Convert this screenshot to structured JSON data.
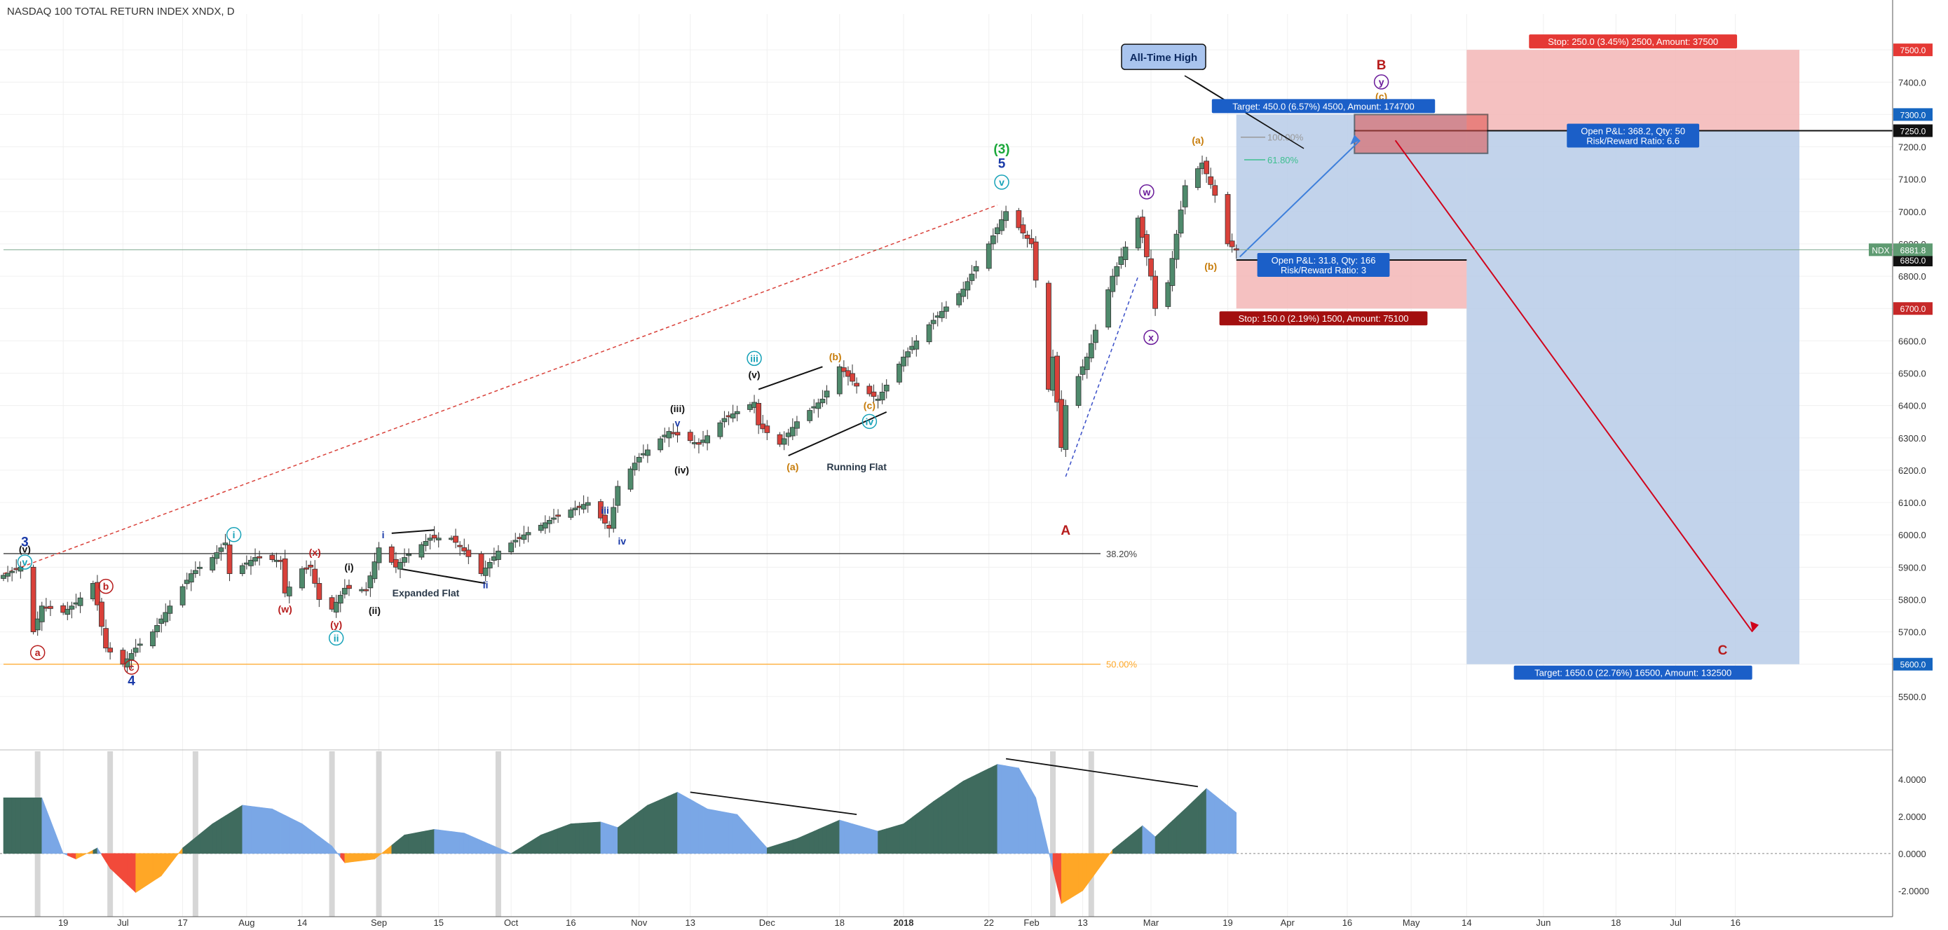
{
  "header": {
    "symbol_title": "NASDAQ 100 TOTAL RETURN INDEX XNDX, D"
  },
  "colors": {
    "up": "#4f8a6c",
    "down": "#d9413a",
    "grid": "#f0f0f0",
    "price_line": "#7faa8f",
    "osc_up_strong": "#3f6b5e",
    "osc_up_weak": "#7aa7e6",
    "osc_down_strong": "#f24a3a",
    "osc_down_weak": "#ffa726",
    "fib_ath": "#999999",
    "fib_618": "#3dbf8f",
    "fib_382": "#111111",
    "fib_50": "#ffa726",
    "target_zone": "#b7cbe8",
    "stop_zone": "#f3b6b6",
    "badge_blue": "#1b5fc8",
    "badge_red": "#c62828"
  },
  "chart_data": [
    {
      "type": "candlestick",
      "title": "NASDAQ 100 TOTAL RETURN INDEX XNDX, D",
      "ylim": [
        5400,
        7600
      ],
      "y_ticks": [
        "7500.0",
        "7400.0",
        "7300.0",
        "7200.0",
        "7100.0",
        "7000.0",
        "6900.0",
        "6800.0",
        "6700.0",
        "6600.0",
        "6500.0",
        "6400.0",
        "6300.0",
        "6200.0",
        "6100.0",
        "6000.0",
        "5900.0",
        "5800.0",
        "5700.0",
        "5600.0",
        "5500.0"
      ],
      "x_ticks": [
        {
          "label": "19",
          "date": "2017-06-19"
        },
        {
          "label": "Jul",
          "date": "2017-07-03"
        },
        {
          "label": "17",
          "date": "2017-07-17"
        },
        {
          "label": "Aug",
          "date": "2017-08-01"
        },
        {
          "label": "14",
          "date": "2017-08-14"
        },
        {
          "label": "Sep",
          "date": "2017-09-01"
        },
        {
          "label": "15",
          "date": "2017-09-15"
        },
        {
          "label": "Oct",
          "date": "2017-10-02"
        },
        {
          "label": "16",
          "date": "2017-10-16"
        },
        {
          "label": "Nov",
          "date": "2017-11-01"
        },
        {
          "label": "13",
          "date": "2017-11-13"
        },
        {
          "label": "Dec",
          "date": "2017-12-01"
        },
        {
          "label": "18",
          "date": "2017-12-18"
        },
        {
          "label": "2018",
          "date": "2018-01-02"
        },
        {
          "label": "22",
          "date": "2018-01-22"
        },
        {
          "label": "Feb",
          "date": "2018-02-01"
        },
        {
          "label": "13",
          "date": "2018-02-13"
        },
        {
          "label": "Mar",
          "date": "2018-03-01"
        },
        {
          "label": "19",
          "date": "2018-03-19"
        },
        {
          "label": "Apr",
          "date": "2018-04-02"
        },
        {
          "label": "16",
          "date": "2018-04-16"
        },
        {
          "label": "May",
          "date": "2018-05-01"
        },
        {
          "label": "14",
          "date": "2018-05-14"
        },
        {
          "label": "Jun",
          "date": "2018-06-01"
        },
        {
          "label": "18",
          "date": "2018-06-18"
        },
        {
          "label": "Jul",
          "date": "2018-07-02"
        },
        {
          "label": "16",
          "date": "2018-07-16"
        }
      ],
      "waypoints": [
        [
          "2017-06-05",
          5875
        ],
        [
          "2017-06-09",
          5900
        ],
        [
          "2017-06-12",
          5700
        ],
        [
          "2017-06-14",
          5780
        ],
        [
          "2017-06-19",
          5760
        ],
        [
          "2017-06-22",
          5790
        ],
        [
          "2017-06-26",
          5850
        ],
        [
          "2017-06-29",
          5650
        ],
        [
          "2017-07-03",
          5600
        ],
        [
          "2017-07-06",
          5650
        ],
        [
          "2017-07-10",
          5700
        ],
        [
          "2017-07-14",
          5780
        ],
        [
          "2017-07-19",
          5880
        ],
        [
          "2017-07-24",
          5930
        ],
        [
          "2017-07-27",
          5975
        ],
        [
          "2017-07-28",
          5880
        ],
        [
          "2017-08-03",
          5930
        ],
        [
          "2017-08-09",
          5920
        ],
        [
          "2017-08-10",
          5820
        ],
        [
          "2017-08-14",
          5895
        ],
        [
          "2017-08-16",
          5900
        ],
        [
          "2017-08-18",
          5800
        ],
        [
          "2017-08-21",
          5770
        ],
        [
          "2017-08-24",
          5835
        ],
        [
          "2017-08-29",
          5830
        ],
        [
          "2017-09-01",
          5960
        ],
        [
          "2017-09-05",
          5900
        ],
        [
          "2017-09-07",
          5930
        ],
        [
          "2017-09-13",
          5990
        ],
        [
          "2017-09-18",
          5990
        ],
        [
          "2017-09-21",
          5950
        ],
        [
          "2017-09-25",
          5880
        ],
        [
          "2017-09-29",
          5950
        ],
        [
          "2017-10-05",
          6000
        ],
        [
          "2017-10-13",
          6060
        ],
        [
          "2017-10-20",
          6100
        ],
        [
          "2017-10-25",
          6020
        ],
        [
          "2017-10-27",
          6150
        ],
        [
          "2017-11-01",
          6240
        ],
        [
          "2017-11-08",
          6320
        ],
        [
          "2017-11-15",
          6280
        ],
        [
          "2017-11-21",
          6360
        ],
        [
          "2017-11-28",
          6410
        ],
        [
          "2017-11-29",
          6340
        ],
        [
          "2017-12-04",
          6280
        ],
        [
          "2017-12-08",
          6350
        ],
        [
          "2017-12-14",
          6420
        ],
        [
          "2017-12-18",
          6520
        ],
        [
          "2017-12-22",
          6460
        ],
        [
          "2017-12-27",
          6420
        ],
        [
          "2018-01-02",
          6550
        ],
        [
          "2018-01-08",
          6650
        ],
        [
          "2018-01-16",
          6760
        ],
        [
          "2018-01-22",
          6900
        ],
        [
          "2018-01-26",
          7000
        ],
        [
          "2018-01-29",
          6950
        ],
        [
          "2018-02-01",
          6900
        ],
        [
          "2018-02-05",
          6450
        ],
        [
          "2018-02-06",
          6550
        ],
        [
          "2018-02-08",
          6270
        ],
        [
          "2018-02-09",
          6400
        ],
        [
          "2018-02-14",
          6550
        ],
        [
          "2018-02-20",
          6800
        ],
        [
          "2018-02-26",
          6980
        ],
        [
          "2018-03-01",
          6800
        ],
        [
          "2018-03-02",
          6700
        ],
        [
          "2018-03-05",
          6780
        ],
        [
          "2018-03-09",
          7080
        ],
        [
          "2018-03-13",
          7150
        ],
        [
          "2018-03-16",
          7050
        ],
        [
          "2018-03-19",
          6900
        ],
        [
          "2018-03-21",
          6881.8
        ]
      ],
      "osc_keys": [
        [
          "2017-06-05",
          3.0
        ],
        [
          "2017-06-14",
          3.0
        ],
        [
          "2017-06-19",
          0.0
        ],
        [
          "2017-06-22",
          -0.3
        ],
        [
          "2017-06-27",
          0.3
        ],
        [
          "2017-06-30",
          -0.8
        ],
        [
          "2017-07-06",
          -2.1
        ],
        [
          "2017-07-12",
          -1.2
        ],
        [
          "2017-07-17",
          0.3
        ],
        [
          "2017-07-24",
          1.6
        ],
        [
          "2017-07-31",
          2.6
        ],
        [
          "2017-08-07",
          2.4
        ],
        [
          "2017-08-14",
          1.6
        ],
        [
          "2017-08-21",
          0.4
        ],
        [
          "2017-08-24",
          -0.5
        ],
        [
          "2017-08-31",
          -0.3
        ],
        [
          "2017-09-07",
          1.0
        ],
        [
          "2017-09-14",
          1.3
        ],
        [
          "2017-09-21",
          1.1
        ],
        [
          "2017-09-28",
          0.4
        ],
        [
          "2017-10-02",
          0.0
        ],
        [
          "2017-10-09",
          1.0
        ],
        [
          "2017-10-16",
          1.6
        ],
        [
          "2017-10-23",
          1.7
        ],
        [
          "2017-10-27",
          1.4
        ],
        [
          "2017-11-03",
          2.6
        ],
        [
          "2017-11-10",
          3.3
        ],
        [
          "2017-11-17",
          2.4
        ],
        [
          "2017-11-24",
          2.1
        ],
        [
          "2017-12-01",
          0.3
        ],
        [
          "2017-12-08",
          0.8
        ],
        [
          "2017-12-18",
          1.8
        ],
        [
          "2017-12-27",
          1.2
        ],
        [
          "2018-01-02",
          1.6
        ],
        [
          "2018-01-09",
          2.8
        ],
        [
          "2018-01-16",
          3.9
        ],
        [
          "2018-01-24",
          4.8
        ],
        [
          "2018-01-29",
          4.6
        ],
        [
          "2018-02-02",
          3.0
        ],
        [
          "2018-02-05",
          0.1
        ],
        [
          "2018-02-08",
          -2.7
        ],
        [
          "2018-02-13",
          -2.0
        ],
        [
          "2018-02-20",
          0.2
        ],
        [
          "2018-02-27",
          1.5
        ],
        [
          "2018-03-02",
          0.9
        ],
        [
          "2018-03-09",
          2.4
        ],
        [
          "2018-03-14",
          3.5
        ],
        [
          "2018-03-21",
          2.2
        ]
      ],
      "price_readout": {
        "value": 6881.8,
        "symbol": "NDX",
        "value_label": "6881.8"
      },
      "levels": [
        {
          "id": "ath",
          "price": 7230,
          "label": "100.00%"
        },
        {
          "id": "fib618",
          "price": 7160,
          "label": "61.80%"
        },
        {
          "id": "fib382",
          "price": 5942,
          "label": "38.20%"
        },
        {
          "id": "fib50",
          "price": 5600,
          "label": "50.00%"
        }
      ],
      "wave_labels": [
        {
          "text": "3",
          "date": "2017-06-10",
          "price": 5965
        },
        {
          "text": "v",
          "date": "2017-06-10",
          "price": 5905,
          "circle": true
        },
        {
          "text": "(v)",
          "date": "2017-06-10",
          "price": 5945
        },
        {
          "text": "a",
          "date": "2017-06-13",
          "price": 5625,
          "circle": true
        },
        {
          "text": "b",
          "date": "2017-06-29",
          "price": 5830,
          "circle": true
        },
        {
          "text": "c",
          "date": "2017-07-05",
          "price": 5580,
          "circle": true
        },
        {
          "text": "4",
          "date": "2017-07-05",
          "price": 5535
        },
        {
          "text": "i",
          "date": "2017-07-29",
          "price": 5990,
          "circle": true
        },
        {
          "text": "(x)",
          "date": "2017-08-17",
          "price": 5935
        },
        {
          "text": "(w)",
          "date": "2017-08-10",
          "price": 5760
        },
        {
          "text": "(y)",
          "date": "2017-08-22",
          "price": 5712
        },
        {
          "text": "ii",
          "date": "2017-08-22",
          "price": 5670,
          "circle": true
        },
        {
          "text": "(i)",
          "date": "2017-08-25",
          "price": 5890
        },
        {
          "text": "(ii)",
          "date": "2017-08-31",
          "price": 5755
        },
        {
          "text": "i",
          "date": "2017-09-02",
          "price": 5990
        },
        {
          "text": "Expanded Flat",
          "date": "2017-09-12",
          "price": 5810
        },
        {
          "text": "ii",
          "date": "2017-09-26",
          "price": 5835
        },
        {
          "text": "iii",
          "date": "2017-10-24",
          "price": 6065
        },
        {
          "text": "iv",
          "date": "2017-10-28",
          "price": 5970
        },
        {
          "text": "(iii)",
          "date": "2017-11-10",
          "price": 6380
        },
        {
          "text": "v",
          "date": "2017-11-10",
          "price": 6335
        },
        {
          "text": "(iv)",
          "date": "2017-11-11",
          "price": 6190
        },
        {
          "text": "iii",
          "date": "2017-11-28",
          "price": 6535,
          "circle": true
        },
        {
          "text": "(v)",
          "date": "2017-11-28",
          "price": 6485
        },
        {
          "text": "(b)",
          "date": "2017-12-17",
          "price": 6540
        },
        {
          "text": "(a)",
          "date": "2017-12-07",
          "price": 6200
        },
        {
          "text": "(c)",
          "date": "2017-12-25",
          "price": 6390
        },
        {
          "text": "iv",
          "date": "2017-12-25",
          "price": 6340,
          "circle": true
        },
        {
          "text": "Running Flat",
          "date": "2017-12-22",
          "price": 6200
        },
        {
          "text": "(3)",
          "date": "2018-01-25",
          "price": 7180
        },
        {
          "text": "5",
          "date": "2018-01-25",
          "price": 7135
        },
        {
          "text": "v",
          "date": "2018-01-25",
          "price": 7080,
          "circle": true
        },
        {
          "text": "A",
          "date": "2018-02-09",
          "price": 6000
        },
        {
          "text": "w",
          "date": "2018-02-28",
          "price": 7050,
          "circle": true
        },
        {
          "text": "x",
          "date": "2018-03-01",
          "price": 6600,
          "circle": true
        },
        {
          "text": "(a)",
          "date": "2018-03-12",
          "price": 7210
        },
        {
          "text": "(b)",
          "date": "2018-03-15",
          "price": 6820
        },
        {
          "text": "B",
          "date": "2018-04-24",
          "price": 7440
        },
        {
          "text": "y",
          "date": "2018-04-24",
          "price": 7390,
          "circle": true
        },
        {
          "text": "(c)",
          "date": "2018-04-24",
          "price": 7345
        },
        {
          "text": "C",
          "date": "2018-07-13",
          "price": 5630
        }
      ],
      "callout": {
        "text": "All-Time High"
      },
      "positions": {
        "long": {
          "entry": 6850,
          "target": 7300,
          "stop": 6700,
          "start_date": "2018-03-21",
          "end_date": "2018-05-14",
          "target_label": "Target: 450.0 (6.57%) 4500, Amount: 174700",
          "stop_label": "Stop: 150.0 (2.19%) 1500, Amount: 75100",
          "pnl_label": "Open P&L: 31.8, Qty: 166",
          "rr_label": "Risk/Reward Ratio: 3"
        },
        "short": {
          "entry": 7250,
          "target": 5600,
          "stop": 7500,
          "start_date": "2018-05-14",
          "end_date": "2018-07-31",
          "target_label": "Target: 1650.0 (22.76%) 16500, Amount: 132500",
          "stop_label": "Stop: 250.0 (3.45%) 2500, Amount: 37500",
          "pnl_label": "Open P&L: 368.2, Qty: 50",
          "rr_label": "Risk/Reward Ratio: 6.6"
        }
      },
      "axis_badges": [
        {
          "price": 7500,
          "label": "7500.0",
          "color": "#e53935"
        },
        {
          "price": 7300,
          "label": "7300.0",
          "color": "#1565c0"
        },
        {
          "price": 7250,
          "label": "7250.0",
          "color": "#111111"
        },
        {
          "price": 6850,
          "label": "6850.0",
          "color": "#111111"
        },
        {
          "price": 6700,
          "label": "6700.0",
          "color": "#c62828"
        },
        {
          "price": 5600,
          "label": "5600.0",
          "color": "#1565c0"
        }
      ]
    },
    {
      "type": "area",
      "title": "",
      "ylim": [
        -3.4,
        5.5
      ],
      "y_ticks": [
        "4.0000",
        "2.0000",
        "0.0000",
        "-2.0000"
      ]
    }
  ]
}
